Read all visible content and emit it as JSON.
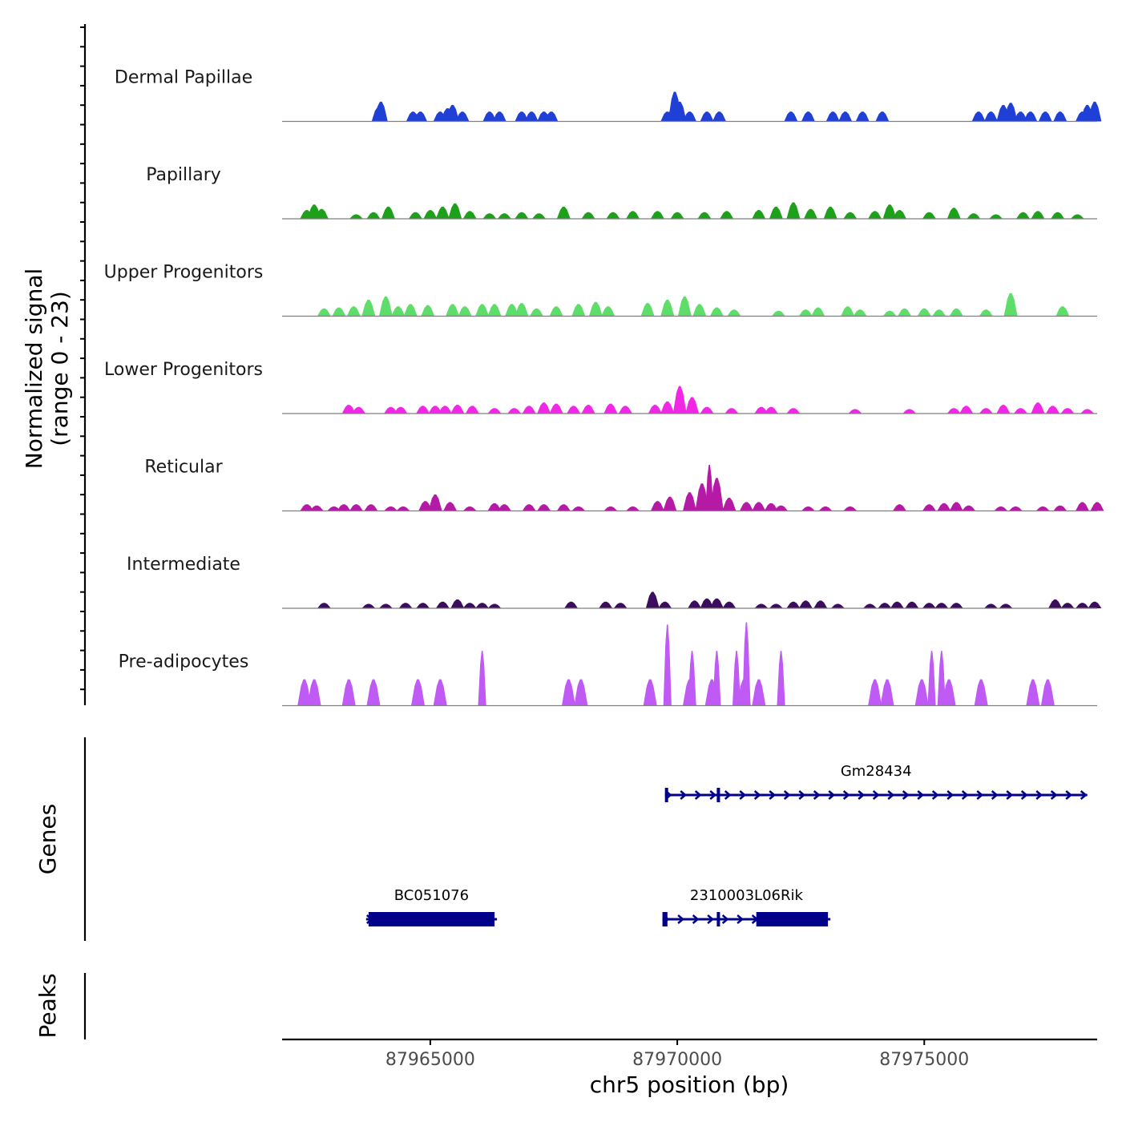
{
  "chart_data": {
    "type": "genome-coverage",
    "region": {
      "chrom": "chr5",
      "start": 87962000,
      "end": 87978500
    },
    "xlabel": "chr5 position (bp)",
    "x_ticks": [
      87965000,
      87970000,
      87975000
    ],
    "x_tick_labels": [
      "87965000",
      "87970000",
      "87975000"
    ],
    "coverage_axis_label": [
      "Normalized signal",
      "(range 0 - 23)"
    ],
    "signal_range": [
      0,
      23
    ],
    "tracks": [
      {
        "name": "Dermal Papillae",
        "color": "#1f3fd6",
        "peaks": [
          [
            87963950,
            0.65
          ],
          [
            87964000,
            0.9
          ],
          [
            87964650,
            0.45
          ],
          [
            87964800,
            0.45
          ],
          [
            87965200,
            0.45
          ],
          [
            87965350,
            0.6
          ],
          [
            87965450,
            0.75
          ],
          [
            87965650,
            0.45
          ],
          [
            87966200,
            0.45
          ],
          [
            87966400,
            0.45
          ],
          [
            87966850,
            0.45
          ],
          [
            87967050,
            0.45
          ],
          [
            87967300,
            0.45
          ],
          [
            87967450,
            0.45
          ],
          [
            87969800,
            0.45
          ],
          [
            87969900,
            0.55
          ],
          [
            87969950,
            1.35
          ],
          [
            87970050,
            0.9
          ],
          [
            87970250,
            0.45
          ],
          [
            87970600,
            0.45
          ],
          [
            87970850,
            0.45
          ],
          [
            87972300,
            0.45
          ],
          [
            87972650,
            0.45
          ],
          [
            87973150,
            0.45
          ],
          [
            87973400,
            0.45
          ],
          [
            87973750,
            0.45
          ],
          [
            87974150,
            0.45
          ],
          [
            87976100,
            0.45
          ],
          [
            87976350,
            0.45
          ],
          [
            87976600,
            0.75
          ],
          [
            87976750,
            0.85
          ],
          [
            87976950,
            0.45
          ],
          [
            87977150,
            0.45
          ],
          [
            87977450,
            0.45
          ],
          [
            87977750,
            0.45
          ],
          [
            87978200,
            0.45
          ],
          [
            87978300,
            0.75
          ],
          [
            87978450,
            0.9
          ]
        ]
      },
      {
        "name": "Papillary",
        "color": "#1ea11a",
        "peaks": [
          [
            87962500,
            0.4
          ],
          [
            87962650,
            0.65
          ],
          [
            87962800,
            0.45
          ],
          [
            87963500,
            0.2
          ],
          [
            87963850,
            0.3
          ],
          [
            87964150,
            0.55
          ],
          [
            87964700,
            0.3
          ],
          [
            87965000,
            0.4
          ],
          [
            87965250,
            0.55
          ],
          [
            87965500,
            0.7
          ],
          [
            87965800,
            0.35
          ],
          [
            87966200,
            0.25
          ],
          [
            87966500,
            0.25
          ],
          [
            87966850,
            0.3
          ],
          [
            87967200,
            0.25
          ],
          [
            87967700,
            0.55
          ],
          [
            87968200,
            0.3
          ],
          [
            87968700,
            0.3
          ],
          [
            87969100,
            0.35
          ],
          [
            87969600,
            0.35
          ],
          [
            87970000,
            0.3
          ],
          [
            87970550,
            0.3
          ],
          [
            87971000,
            0.35
          ],
          [
            87971650,
            0.4
          ],
          [
            87972000,
            0.55
          ],
          [
            87972350,
            0.75
          ],
          [
            87972700,
            0.45
          ],
          [
            87973100,
            0.55
          ],
          [
            87973500,
            0.3
          ],
          [
            87974000,
            0.35
          ],
          [
            87974300,
            0.65
          ],
          [
            87974500,
            0.4
          ],
          [
            87975100,
            0.3
          ],
          [
            87975600,
            0.5
          ],
          [
            87976000,
            0.25
          ],
          [
            87976450,
            0.2
          ],
          [
            87977000,
            0.3
          ],
          [
            87977300,
            0.35
          ],
          [
            87977700,
            0.3
          ],
          [
            87978100,
            0.2
          ]
        ]
      },
      {
        "name": "Upper Progenitors",
        "color": "#5edd6a",
        "peaks": [
          [
            87962850,
            0.35
          ],
          [
            87963150,
            0.4
          ],
          [
            87963450,
            0.45
          ],
          [
            87963750,
            0.75
          ],
          [
            87964100,
            0.9
          ],
          [
            87964350,
            0.45
          ],
          [
            87964600,
            0.55
          ],
          [
            87964950,
            0.5
          ],
          [
            87965450,
            0.55
          ],
          [
            87965700,
            0.45
          ],
          [
            87966050,
            0.55
          ],
          [
            87966300,
            0.55
          ],
          [
            87966650,
            0.55
          ],
          [
            87966850,
            0.6
          ],
          [
            87967150,
            0.35
          ],
          [
            87967550,
            0.45
          ],
          [
            87968000,
            0.55
          ],
          [
            87968350,
            0.65
          ],
          [
            87968600,
            0.45
          ],
          [
            87969400,
            0.6
          ],
          [
            87969800,
            0.75
          ],
          [
            87970150,
            0.9
          ],
          [
            87970450,
            0.55
          ],
          [
            87970800,
            0.4
          ],
          [
            87971150,
            0.3
          ],
          [
            87972050,
            0.25
          ],
          [
            87972600,
            0.3
          ],
          [
            87972850,
            0.4
          ],
          [
            87973450,
            0.45
          ],
          [
            87973700,
            0.3
          ],
          [
            87974300,
            0.25
          ],
          [
            87974600,
            0.35
          ],
          [
            87975000,
            0.35
          ],
          [
            87975300,
            0.3
          ],
          [
            87975650,
            0.35
          ],
          [
            87976250,
            0.3
          ],
          [
            87976750,
            1.05
          ],
          [
            87977800,
            0.45
          ]
        ]
      },
      {
        "name": "Lower Progenitors",
        "color": "#f028e6",
        "peaks": [
          [
            87963350,
            0.4
          ],
          [
            87963550,
            0.3
          ],
          [
            87964200,
            0.3
          ],
          [
            87964400,
            0.3
          ],
          [
            87964850,
            0.35
          ],
          [
            87965100,
            0.35
          ],
          [
            87965300,
            0.35
          ],
          [
            87965550,
            0.4
          ],
          [
            87965850,
            0.35
          ],
          [
            87966300,
            0.25
          ],
          [
            87966700,
            0.25
          ],
          [
            87967000,
            0.35
          ],
          [
            87967300,
            0.5
          ],
          [
            87967550,
            0.45
          ],
          [
            87967900,
            0.35
          ],
          [
            87968200,
            0.4
          ],
          [
            87968650,
            0.45
          ],
          [
            87968950,
            0.35
          ],
          [
            87969550,
            0.4
          ],
          [
            87969800,
            0.55
          ],
          [
            87970050,
            1.25
          ],
          [
            87970300,
            0.75
          ],
          [
            87970600,
            0.3
          ],
          [
            87971100,
            0.25
          ],
          [
            87971700,
            0.3
          ],
          [
            87971900,
            0.3
          ],
          [
            87972350,
            0.25
          ],
          [
            87973600,
            0.2
          ],
          [
            87974700,
            0.2
          ],
          [
            87975600,
            0.25
          ],
          [
            87975850,
            0.35
          ],
          [
            87976250,
            0.25
          ],
          [
            87976600,
            0.4
          ],
          [
            87976950,
            0.25
          ],
          [
            87977300,
            0.5
          ],
          [
            87977600,
            0.35
          ],
          [
            87977900,
            0.25
          ],
          [
            87978300,
            0.2
          ]
        ]
      },
      {
        "name": "Reticular",
        "color": "#b51aa6",
        "peaks": [
          [
            87962500,
            0.3
          ],
          [
            87962700,
            0.25
          ],
          [
            87963050,
            0.2
          ],
          [
            87963250,
            0.3
          ],
          [
            87963500,
            0.3
          ],
          [
            87963800,
            0.3
          ],
          [
            87964200,
            0.2
          ],
          [
            87964450,
            0.2
          ],
          [
            87964900,
            0.45
          ],
          [
            87965100,
            0.75
          ],
          [
            87965400,
            0.4
          ],
          [
            87965800,
            0.2
          ],
          [
            87966300,
            0.35
          ],
          [
            87966500,
            0.3
          ],
          [
            87967000,
            0.3
          ],
          [
            87967300,
            0.3
          ],
          [
            87967700,
            0.3
          ],
          [
            87968000,
            0.2
          ],
          [
            87968650,
            0.2
          ],
          [
            87969100,
            0.2
          ],
          [
            87969600,
            0.45
          ],
          [
            87969850,
            0.65
          ],
          [
            87970250,
            0.85
          ],
          [
            87970500,
            1.25
          ],
          [
            87970650,
            2.1
          ],
          [
            87970800,
            1.5
          ],
          [
            87971050,
            0.6
          ],
          [
            87971400,
            0.4
          ],
          [
            87971650,
            0.4
          ],
          [
            87971900,
            0.35
          ],
          [
            87972100,
            0.25
          ],
          [
            87972650,
            0.2
          ],
          [
            87973000,
            0.2
          ],
          [
            87973500,
            0.2
          ],
          [
            87974500,
            0.3
          ],
          [
            87975100,
            0.3
          ],
          [
            87975400,
            0.35
          ],
          [
            87975650,
            0.4
          ],
          [
            87975900,
            0.25
          ],
          [
            87976550,
            0.2
          ],
          [
            87976850,
            0.2
          ],
          [
            87977400,
            0.2
          ],
          [
            87977750,
            0.25
          ],
          [
            87978200,
            0.4
          ],
          [
            87978500,
            0.4
          ]
        ]
      },
      {
        "name": "Intermediate",
        "color": "#3c0d5e",
        "peaks": [
          [
            87962850,
            0.25
          ],
          [
            87963750,
            0.2
          ],
          [
            87964100,
            0.2
          ],
          [
            87964500,
            0.25
          ],
          [
            87964850,
            0.25
          ],
          [
            87965250,
            0.3
          ],
          [
            87965550,
            0.4
          ],
          [
            87965800,
            0.25
          ],
          [
            87966050,
            0.25
          ],
          [
            87966300,
            0.2
          ],
          [
            87967850,
            0.3
          ],
          [
            87968550,
            0.3
          ],
          [
            87968850,
            0.25
          ],
          [
            87969500,
            0.75
          ],
          [
            87969750,
            0.3
          ],
          [
            87970350,
            0.35
          ],
          [
            87970600,
            0.45
          ],
          [
            87970800,
            0.45
          ],
          [
            87971050,
            0.3
          ],
          [
            87971700,
            0.2
          ],
          [
            87972000,
            0.2
          ],
          [
            87972350,
            0.3
          ],
          [
            87972600,
            0.35
          ],
          [
            87972900,
            0.35
          ],
          [
            87973250,
            0.2
          ],
          [
            87973900,
            0.2
          ],
          [
            87974200,
            0.25
          ],
          [
            87974450,
            0.3
          ],
          [
            87974750,
            0.3
          ],
          [
            87975100,
            0.25
          ],
          [
            87975350,
            0.25
          ],
          [
            87975650,
            0.25
          ],
          [
            87976350,
            0.2
          ],
          [
            87976650,
            0.2
          ],
          [
            87977650,
            0.4
          ],
          [
            87977900,
            0.25
          ],
          [
            87978200,
            0.25
          ],
          [
            87978450,
            0.3
          ]
        ]
      },
      {
        "name": "Pre-adipocytes",
        "color": "#bf5af5",
        "peaks": [
          [
            87962450,
            1.2
          ],
          [
            87962650,
            1.2
          ],
          [
            87963350,
            1.2
          ],
          [
            87963850,
            1.2
          ],
          [
            87964750,
            1.2
          ],
          [
            87965200,
            1.2
          ],
          [
            87966050,
            2.5
          ],
          [
            87967800,
            1.2
          ],
          [
            87968050,
            1.2
          ],
          [
            87969450,
            1.2
          ],
          [
            87969800,
            3.7
          ],
          [
            87970250,
            1.2
          ],
          [
            87970300,
            2.5
          ],
          [
            87970700,
            1.2
          ],
          [
            87970800,
            2.5
          ],
          [
            87971200,
            2.5
          ],
          [
            87971350,
            1.2
          ],
          [
            87971400,
            3.8
          ],
          [
            87971650,
            1.2
          ],
          [
            87972100,
            2.5
          ],
          [
            87974000,
            1.2
          ],
          [
            87974250,
            1.2
          ],
          [
            87974950,
            1.2
          ],
          [
            87975150,
            2.5
          ],
          [
            87975350,
            2.5
          ],
          [
            87975500,
            1.2
          ],
          [
            87976150,
            1.2
          ],
          [
            87977200,
            1.2
          ],
          [
            87977500,
            1.2
          ]
        ]
      }
    ],
    "genes": [
      {
        "name": "Gm28434",
        "row": 0,
        "start": 87969750,
        "end": 87978300,
        "strand": "+",
        "exons": [
          [
            87969750,
            87969800
          ],
          [
            87970800,
            87970850
          ]
        ]
      },
      {
        "name": "BC051076",
        "row": 1,
        "start": 87963700,
        "end": 87966350,
        "strand": "+",
        "exons": [
          [
            87963750,
            87966300
          ]
        ]
      },
      {
        "name": "2310003L06Rik",
        "row": 1,
        "start": 87969700,
        "end": 87973100,
        "strand": "+",
        "exons": [
          [
            87969700,
            87969800
          ],
          [
            87970800,
            87970850
          ],
          [
            87971600,
            87973050
          ]
        ]
      }
    ],
    "gene_axis_label": "Genes",
    "peaks_axis_label": "Peaks",
    "gene_color": "#00008b"
  }
}
